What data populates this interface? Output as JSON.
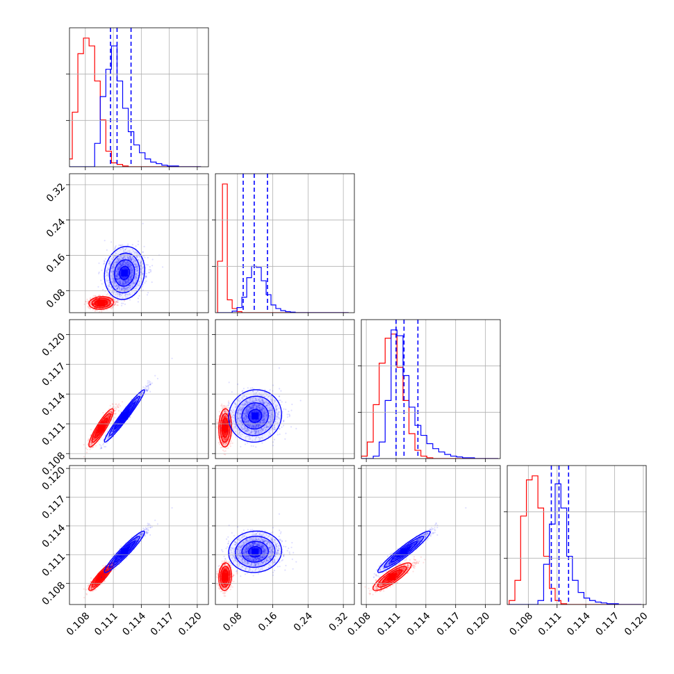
{
  "chart_data": {
    "type": "scatter",
    "title": "",
    "grid": true,
    "colors": {
      "series_a": "#ff0000",
      "series_b": "#0000ff"
    },
    "parameters": [
      {
        "ticks": [
          0.108,
          0.111,
          0.114,
          0.117,
          0.12
        ],
        "tick_labels": [
          "0.108",
          "0.111",
          "0.114",
          "0.117",
          "0.120"
        ],
        "range": [
          0.1063,
          0.1212
        ]
      },
      {
        "ticks": [
          0.08,
          0.16,
          0.24,
          0.32
        ],
        "tick_labels": [
          "0.08",
          "0.16",
          "0.24",
          "0.32"
        ],
        "range": [
          0.03,
          0.345
        ]
      },
      {
        "ticks": [
          0.108,
          0.111,
          0.114,
          0.117,
          0.12
        ],
        "tick_labels": [
          "0.108",
          "0.111",
          "0.114",
          "0.117",
          "0.120"
        ],
        "range": [
          0.1075,
          0.1215
        ]
      },
      {
        "ticks": [
          0.108,
          0.111,
          0.114,
          0.117,
          0.12
        ],
        "tick_labels": [
          "0.108",
          "0.111",
          "0.114",
          "0.117",
          "0.120"
        ],
        "range": [
          0.1058,
          0.1203
        ]
      }
    ],
    "series": [
      {
        "color": "#ff0000",
        "mean": [
          0.1097,
          0.052,
          0.1106,
          0.1087
        ],
        "sd": [
          0.00055,
          0.006,
          0.0008,
          0.0006
        ]
      },
      {
        "color": "#0000ff",
        "mean": [
          0.1122,
          0.12,
          0.1118,
          0.1113
        ],
        "sd": [
          0.0009,
          0.025,
          0.0011,
          0.0009
        ]
      }
    ],
    "quantiles_parameter_values": [
      [
        0.1107,
        0.1114,
        0.1129
      ],
      [
        0.093,
        0.118,
        0.148
      ],
      [
        0.111,
        0.1118,
        0.1132
      ],
      [
        0.1104,
        0.1112,
        0.1122
      ]
    ],
    "correlations": {
      "series_a": [
        [
          1,
          0.1,
          0.9,
          0.9
        ],
        [
          0.1,
          1,
          0.05,
          0.1
        ],
        [
          0.9,
          0.05,
          1,
          0.85
        ],
        [
          0.9,
          0.1,
          0.85,
          1
        ]
      ],
      "series_b": [
        [
          1,
          0.1,
          0.97,
          0.95
        ],
        [
          0.1,
          1,
          0.05,
          0.05
        ],
        [
          0.97,
          0.05,
          1,
          0.95
        ],
        [
          0.95,
          0.05,
          0.95,
          1
        ]
      ]
    },
    "histograms": [
      {
        "bin_edges": [
          0.106,
          0.1066,
          0.1072,
          0.1078,
          0.1084,
          0.109,
          0.1096,
          0.1102,
          0.1108,
          0.1114,
          0.112,
          0.1126,
          0.1132,
          0.1138,
          0.1144,
          0.115,
          0.1156,
          0.1162,
          0.1168,
          0.1174,
          0.118,
          0.1186,
          0.1192,
          0.1198,
          0.1204
        ],
        "series_a": [
          10,
          70,
          145,
          165,
          155,
          110,
          60,
          20,
          5,
          3,
          1,
          0,
          0,
          0,
          0,
          0,
          0,
          0,
          0,
          0,
          0,
          0,
          0,
          0
        ],
        "series_b": [
          0,
          0,
          0,
          0,
          0,
          30,
          90,
          125,
          155,
          110,
          75,
          45,
          28,
          18,
          10,
          6,
          4,
          2,
          1,
          1,
          0,
          0,
          0,
          0
        ]
      },
      {
        "bin_edges": [
          0.035,
          0.046,
          0.057,
          0.068,
          0.079,
          0.09,
          0.101,
          0.112,
          0.123,
          0.134,
          0.145,
          0.156,
          0.167,
          0.178,
          0.189,
          0.2,
          0.211,
          0.222,
          0.233,
          0.244,
          0.255,
          0.266,
          0.277,
          0.288,
          0.299,
          0.31,
          0.321,
          0.332
        ],
        "series_a": [
          100,
          250,
          25,
          8,
          2,
          0,
          0,
          0,
          0,
          0,
          0,
          0,
          0,
          0,
          0,
          0,
          0,
          0,
          0,
          0,
          0,
          0,
          0,
          0,
          0,
          0,
          0
        ],
        "series_b": [
          0,
          0,
          0,
          3,
          10,
          30,
          68,
          90,
          88,
          62,
          35,
          15,
          8,
          4,
          2,
          1,
          0,
          0,
          0,
          0,
          0,
          0,
          0,
          0,
          0,
          0,
          0
        ]
      },
      {
        "bin_edges": [
          0.1075,
          0.1081,
          0.1087,
          0.1093,
          0.1099,
          0.1105,
          0.1111,
          0.1117,
          0.1123,
          0.1129,
          0.1135,
          0.1141,
          0.1147,
          0.1153,
          0.1159,
          0.1165,
          0.1171,
          0.1177,
          0.1183,
          0.1189,
          0.1195,
          0.1201,
          0.1207,
          0.1213
        ],
        "series_a": [
          3,
          20,
          65,
          115,
          145,
          150,
          110,
          70,
          30,
          10,
          3,
          1,
          0,
          0,
          0,
          0,
          0,
          0,
          0,
          0,
          0,
          0,
          0
        ],
        "series_b": [
          0,
          0,
          3,
          20,
          70,
          155,
          148,
          100,
          62,
          40,
          28,
          18,
          12,
          8,
          5,
          3,
          2,
          1,
          1,
          0,
          0,
          0,
          0
        ]
      },
      {
        "bin_edges": [
          0.106,
          0.1066,
          0.1072,
          0.1078,
          0.1084,
          0.109,
          0.1096,
          0.1102,
          0.1108,
          0.1114,
          0.112,
          0.1126,
          0.1132,
          0.1138,
          0.1144,
          0.115,
          0.1156,
          0.1162,
          0.1168,
          0.1174,
          0.118,
          0.1186,
          0.1192,
          0.1198
        ],
        "series_a": [
          5,
          30,
          110,
          155,
          160,
          120,
          60,
          20,
          5,
          1,
          0,
          0,
          0,
          0,
          0,
          0,
          0,
          0,
          0,
          0,
          0,
          0,
          0
        ],
        "series_b": [
          0,
          0,
          0,
          0,
          0,
          5,
          50,
          100,
          150,
          120,
          60,
          30,
          15,
          8,
          5,
          3,
          2,
          1,
          1,
          0,
          0,
          0,
          0
        ]
      }
    ]
  }
}
